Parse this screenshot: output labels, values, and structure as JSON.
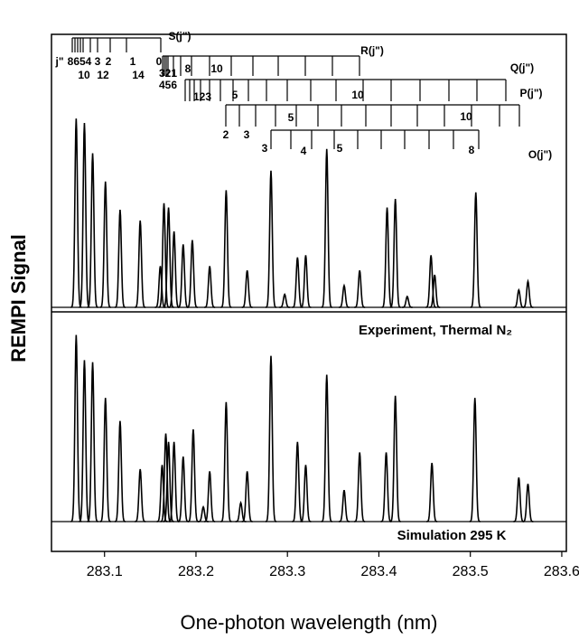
{
  "chart_data": [
    {
      "type": "spectrum",
      "label": "Experiment, Thermal N₂",
      "color": "#000000",
      "x": [
        283.069,
        283.078,
        283.087,
        283.101,
        283.117,
        283.139,
        283.161,
        283.165,
        283.17,
        283.176,
        283.186,
        283.196,
        283.215,
        283.233,
        283.256,
        283.282,
        283.297,
        283.311,
        283.32,
        283.343,
        283.362,
        283.379,
        283.409,
        283.418,
        283.431,
        283.457,
        283.461,
        283.506,
        283.553,
        283.563
      ],
      "values": [
        87,
        85,
        71,
        58,
        45,
        40,
        19,
        48,
        46,
        35,
        29,
        31,
        19,
        54,
        17,
        63,
        6,
        23,
        24,
        73,
        10,
        17,
        46,
        50,
        5,
        24,
        15,
        53,
        8,
        12
      ],
      "xlim": [
        283.042,
        283.605
      ],
      "ylim": [
        0,
        100
      ],
      "annotations": [
        "S(j\")",
        "R(j\")",
        "Q(j\")",
        "P(j\")",
        "O(j\")",
        "j\"",
        "8654",
        "3",
        "2",
        "1",
        "0",
        "10",
        "12",
        "14",
        "321",
        "456",
        "8",
        "10",
        "123",
        "5",
        "10",
        "2",
        "3",
        "5",
        "10",
        "3",
        "4",
        "5",
        "8"
      ]
    },
    {
      "type": "spectrum",
      "label": "Simulation 295 K",
      "color": "#000000",
      "x": [
        283.069,
        283.078,
        283.087,
        283.101,
        283.117,
        283.139,
        283.163,
        283.167,
        283.17,
        283.176,
        283.186,
        283.197,
        283.208,
        283.215,
        283.233,
        283.249,
        283.256,
        283.282,
        283.311,
        283.32,
        283.343,
        283.362,
        283.379,
        283.408,
        283.418,
        283.458,
        283.505,
        283.553,
        283.563
      ],
      "values": [
        89,
        77,
        76,
        59,
        48,
        25,
        27,
        42,
        38,
        38,
        31,
        44,
        7,
        24,
        57,
        9,
        24,
        79,
        38,
        27,
        70,
        15,
        33,
        33,
        60,
        28,
        59,
        21,
        18
      ],
      "xlim": [
        283.042,
        283.605
      ],
      "ylim": [
        0,
        100
      ],
      "xticks": [
        283.1,
        283.2,
        283.3,
        283.4,
        283.5,
        283.6
      ],
      "xlabel": "One-photon wavelength (nm)",
      "ylabel": "REMPI Signal"
    }
  ]
}
